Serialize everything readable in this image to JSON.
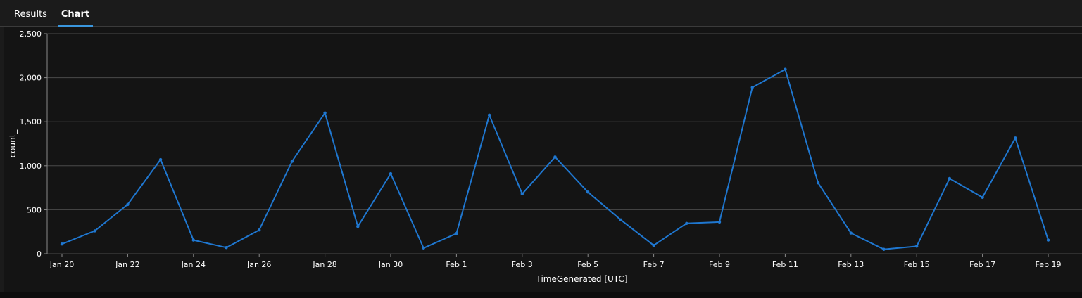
{
  "tabs": [
    {
      "label": "Results"
    },
    {
      "label": "Chart"
    }
  ],
  "colors": {
    "line": "#1f77d0",
    "grid": "#4a4a4a",
    "tab_underline": "#3a96dd"
  },
  "chart_data": {
    "type": "line",
    "title": "",
    "xlabel": "TimeGenerated [UTC]",
    "ylabel": "count_",
    "ylim": [
      0,
      2500
    ],
    "y_ticks": [
      0,
      500,
      1000,
      1500,
      2000,
      2500
    ],
    "y_tick_labels": [
      "0",
      "500",
      "1,000",
      "1,500",
      "2,000",
      "2,500"
    ],
    "x_tick_labels": [
      "Jan 20",
      "Jan 22",
      "Jan 24",
      "Jan 26",
      "Jan 28",
      "Jan 30",
      "Feb 1",
      "Feb 3",
      "Feb 5",
      "Feb 7",
      "Feb 9",
      "Feb 11",
      "Feb 13",
      "Feb 15",
      "Feb 17",
      "Feb 19"
    ],
    "x": [
      "Jan 20",
      "Jan 21",
      "Jan 22",
      "Jan 23",
      "Jan 24",
      "Jan 25",
      "Jan 26",
      "Jan 27",
      "Jan 28",
      "Jan 29",
      "Jan 30",
      "Jan 31",
      "Feb 1",
      "Feb 2",
      "Feb 3",
      "Feb 4",
      "Feb 5",
      "Feb 6",
      "Feb 7",
      "Feb 8",
      "Feb 9",
      "Feb 10",
      "Feb 11",
      "Feb 12",
      "Feb 13",
      "Feb 14",
      "Feb 15",
      "Feb 16",
      "Feb 17",
      "Feb 18",
      "Feb 19"
    ],
    "series": [
      {
        "values": [
          110,
          260,
          560,
          1070,
          155,
          70,
          270,
          1050,
          1600,
          310,
          910,
          65,
          230,
          1575,
          680,
          1100,
          700,
          385,
          95,
          345,
          360,
          1890,
          2095,
          805,
          235,
          50,
          85,
          855,
          640,
          1315,
          155
        ]
      }
    ],
    "grid": true,
    "legend": "none"
  }
}
